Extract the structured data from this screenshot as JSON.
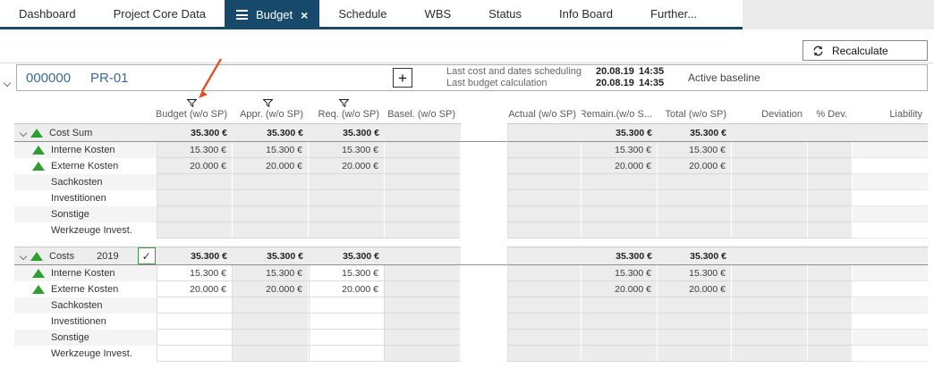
{
  "nav": {
    "tabs": [
      {
        "label": "Dashboard",
        "active": false
      },
      {
        "label": "Project Core Data",
        "active": false
      },
      {
        "label": "Budget",
        "active": true
      },
      {
        "label": "Schedule",
        "active": false
      },
      {
        "label": "WBS",
        "active": false
      },
      {
        "label": "Status",
        "active": false
      },
      {
        "label": "Info Board",
        "active": false
      },
      {
        "label": "Further...",
        "active": false
      }
    ]
  },
  "toolbar": {
    "recalculate_label": "Recalculate"
  },
  "project": {
    "id": "000000",
    "code": "PR-01",
    "plus_label": "+",
    "last_cost_scheduling_label": "Last cost and dates scheduling",
    "last_cost_scheduling_date": "20.08.19",
    "last_cost_scheduling_time": "14:35",
    "last_budget_calc_label": "Last budget calculation",
    "last_budget_calc_date": "20.08.19",
    "last_budget_calc_time": "14:35",
    "baseline_label": "Active baseline"
  },
  "table": {
    "columns": [
      {
        "label": "Budget (w/o SP)",
        "filter": true
      },
      {
        "label": "Appr. (w/o SP)",
        "filter": true
      },
      {
        "label": "Req. (w/o SP)",
        "filter": true
      },
      {
        "label": "Basel. (w/o SP)",
        "filter": false
      },
      {
        "label": "Actual (w/o SP)",
        "filter": false
      },
      {
        "label": "Remain.(w/o S...",
        "filter": false
      },
      {
        "label": "Total (w/o SP)",
        "filter": false
      },
      {
        "label": "Deviation",
        "filter": false
      },
      {
        "label": "% Dev.",
        "filter": false
      },
      {
        "label": "Liability",
        "filter": false
      }
    ],
    "value_keys": [
      "budget",
      "appr",
      "req",
      "basel",
      "actual",
      "remain",
      "total",
      "deviation",
      "pdev",
      "liability"
    ],
    "groups": [
      {
        "title": "Cost Sum",
        "year": "",
        "has_checkbox": false,
        "editable_columns": [],
        "values": {
          "budget": "35.300 €",
          "appr": "35.300 €",
          "req": "35.300 €",
          "basel": "",
          "actual": "",
          "remain": "35.300 €",
          "total": "35.300 €",
          "deviation": "",
          "pdev": "",
          "liability": ""
        },
        "rows": [
          {
            "label": "Interne Kosten",
            "has_indicator": true,
            "values": {
              "budget": "15.300 €",
              "appr": "15.300 €",
              "req": "15.300 €",
              "basel": "",
              "actual": "",
              "remain": "15.300 €",
              "total": "15.300 €",
              "deviation": "",
              "pdev": "",
              "liability": ""
            }
          },
          {
            "label": "Externe Kosten",
            "has_indicator": true,
            "values": {
              "budget": "20.000 €",
              "appr": "20.000 €",
              "req": "20.000 €",
              "basel": "",
              "actual": "",
              "remain": "20.000 €",
              "total": "20.000 €",
              "deviation": "",
              "pdev": "",
              "liability": ""
            }
          },
          {
            "label": "Sachkosten",
            "has_indicator": false,
            "values": {}
          },
          {
            "label": "Investitionen",
            "has_indicator": false,
            "values": {}
          },
          {
            "label": "Sonstige",
            "has_indicator": false,
            "values": {}
          },
          {
            "label": "Werkzeuge Invest.",
            "has_indicator": false,
            "values": {}
          }
        ]
      },
      {
        "title": "Costs",
        "year": "2019",
        "has_checkbox": true,
        "checkbox_checked": true,
        "editable_columns": [
          "budget",
          "req"
        ],
        "values": {
          "budget": "35.300 €",
          "appr": "35.300 €",
          "req": "35.300 €",
          "basel": "",
          "actual": "",
          "remain": "35.300 €",
          "total": "35.300 €",
          "deviation": "",
          "pdev": "",
          "liability": ""
        },
        "rows": [
          {
            "label": "Interne Kosten",
            "has_indicator": true,
            "values": {
              "budget": "15.300 €",
              "appr": "15.300 €",
              "req": "15.300 €",
              "basel": "",
              "actual": "",
              "remain": "15.300 €",
              "total": "15.300 €",
              "deviation": "",
              "pdev": "",
              "liability": ""
            }
          },
          {
            "label": "Externe Kosten",
            "has_indicator": true,
            "values": {
              "budget": "20.000 €",
              "appr": "20.000 €",
              "req": "20.000 €",
              "basel": "",
              "actual": "",
              "remain": "20.000 €",
              "total": "20.000 €",
              "deviation": "",
              "pdev": "",
              "liability": ""
            }
          },
          {
            "label": "Sachkosten",
            "has_indicator": false,
            "values": {}
          },
          {
            "label": "Investitionen",
            "has_indicator": false,
            "values": {}
          },
          {
            "label": "Sonstige",
            "has_indicator": false,
            "values": {}
          },
          {
            "label": "Werkzeuge Invest.",
            "has_indicator": false,
            "values": {}
          }
        ]
      }
    ]
  },
  "annotation": {
    "type": "arrow",
    "points_at": "budget-column-filter",
    "color": "#e2512b"
  },
  "colors": {
    "accent_navy": "#17496b",
    "link_blue": "#3a6b96",
    "indicator_green": "#2e9e2e",
    "checkbox_green": "#3f9b3f",
    "band_gray": "#ededed",
    "cell_gray": "#ececec"
  }
}
